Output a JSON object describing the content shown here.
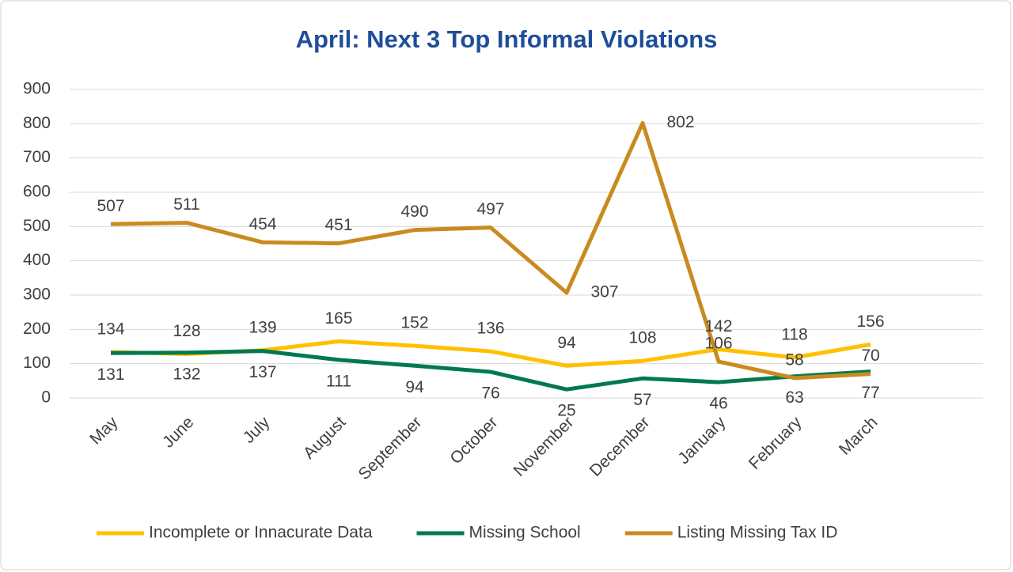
{
  "chart_data": {
    "type": "line",
    "title": "April: Next 3 Top Informal Violations",
    "categories": [
      "May",
      "June",
      "July",
      "August",
      "September",
      "October",
      "November",
      "December",
      "January",
      "February",
      "March"
    ],
    "series": [
      {
        "name": "Incomplete or Innacurate Data",
        "color": "#ffc000",
        "values": [
          134,
          128,
          139,
          165,
          152,
          136,
          94,
          108,
          142,
          118,
          156
        ]
      },
      {
        "name": "Missing School",
        "color": "#007a4d",
        "values": [
          131,
          132,
          137,
          111,
          94,
          76,
          25,
          57,
          46,
          63,
          77
        ]
      },
      {
        "name": "Listing Missing Tax ID",
        "color": "#c98b1f",
        "values": [
          507,
          511,
          454,
          451,
          490,
          497,
          307,
          802,
          106,
          58,
          70
        ]
      }
    ],
    "ylim": [
      0,
      900
    ],
    "yticks": [
      0,
      100,
      200,
      300,
      400,
      500,
      600,
      700,
      800,
      900
    ],
    "grid": true,
    "legend": "bottom"
  }
}
